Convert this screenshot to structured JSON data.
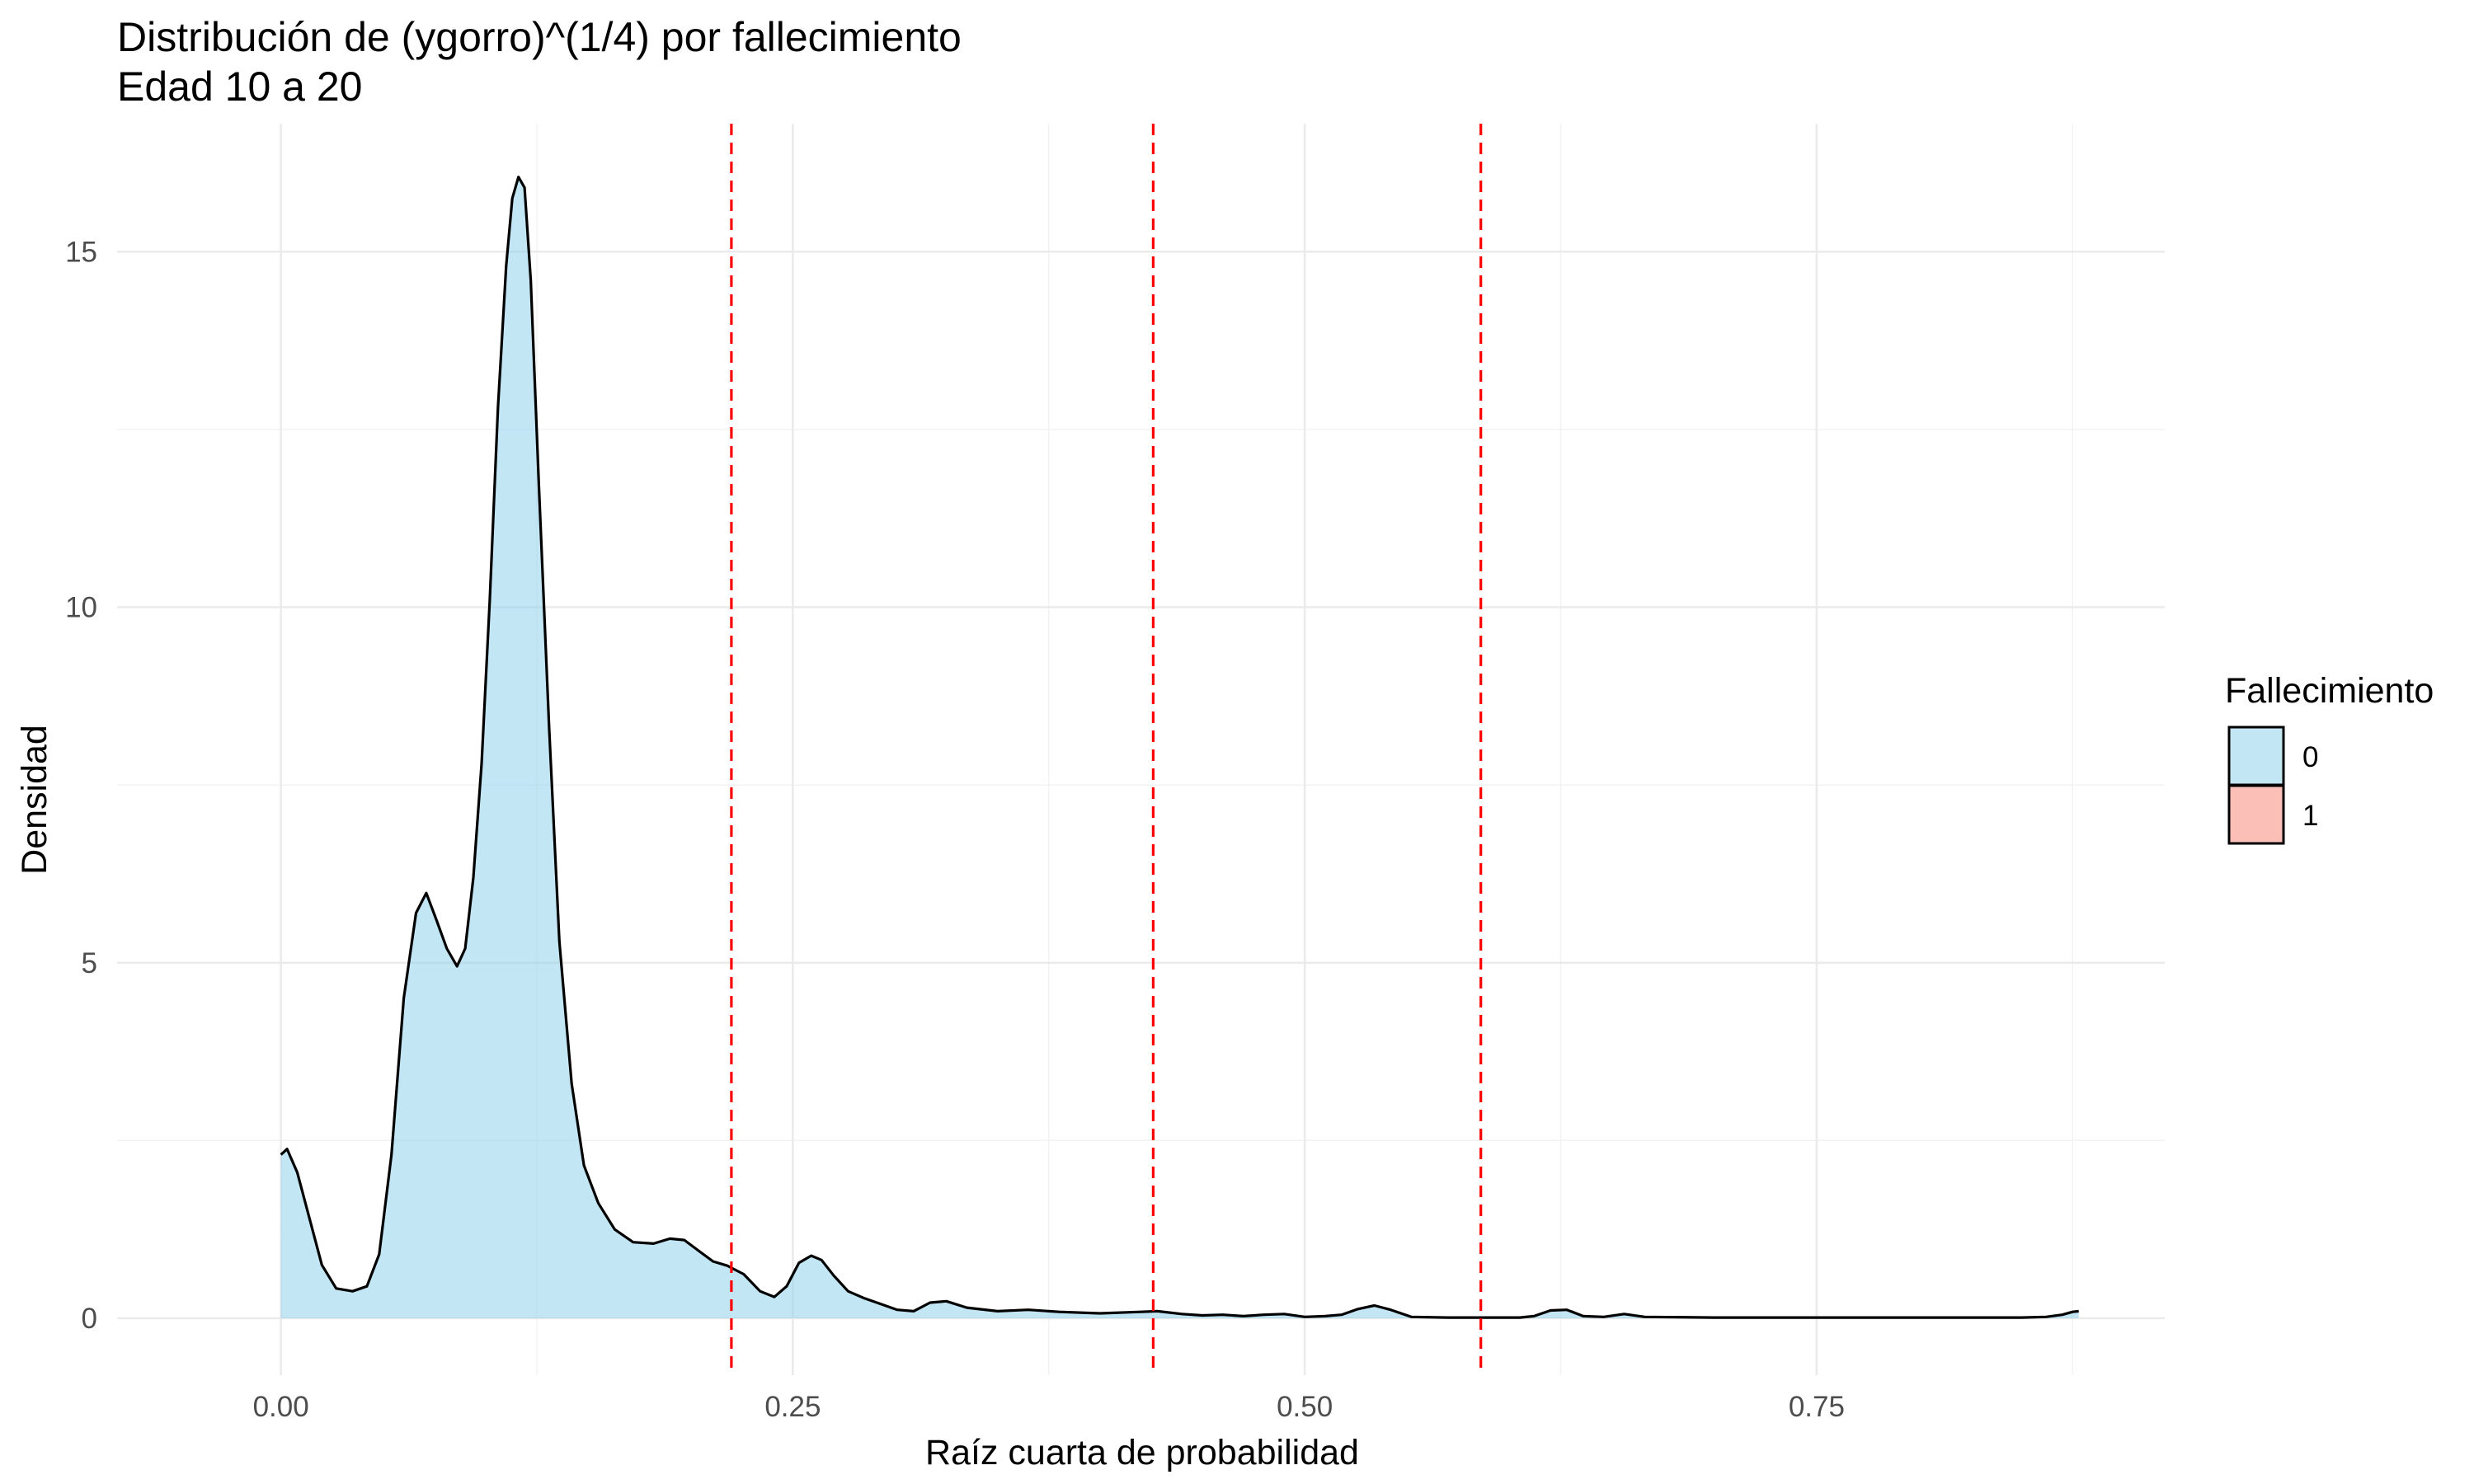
{
  "chart_data": {
    "type": "area",
    "title": "Distribución de (ygorro)^(1/4) por fallecimiento",
    "subtitle": "Edad 10 a 20",
    "xlabel": "Raíz cuarta de probabilidad",
    "ylabel": "Densidad",
    "xlim": [
      -0.08,
      0.92
    ],
    "ylim": [
      -0.8,
      16.8
    ],
    "x_ticks": [
      0,
      0.25,
      0.5,
      0.75
    ],
    "x_tick_labels": [
      "0.00",
      "0.25",
      "0.50",
      "0.75"
    ],
    "y_ticks": [
      0,
      5,
      10,
      15
    ],
    "y_tick_labels": [
      "0",
      "5",
      "10",
      "15"
    ],
    "grid": true,
    "legend": {
      "title": "Fallecimiento",
      "position": "right",
      "entries": [
        {
          "label": "0",
          "color": "#87ceeb"
        },
        {
          "label": "1",
          "color": "#fa8072"
        }
      ]
    },
    "series": [
      {
        "name": "0",
        "fill": "#87ceeb",
        "x": [
          0.0,
          0.003,
          0.008,
          0.014,
          0.02,
          0.027,
          0.035,
          0.042,
          0.048,
          0.054,
          0.06,
          0.066,
          0.071,
          0.076,
          0.081,
          0.086,
          0.09,
          0.094,
          0.098,
          0.102,
          0.106,
          0.11,
          0.113,
          0.116,
          0.119,
          0.122,
          0.126,
          0.131,
          0.136,
          0.142,
          0.148,
          0.155,
          0.163,
          0.172,
          0.182,
          0.19,
          0.197,
          0.204,
          0.211,
          0.218,
          0.226,
          0.234,
          0.241,
          0.247,
          0.253,
          0.259,
          0.264,
          0.27,
          0.277,
          0.285,
          0.293,
          0.301,
          0.309,
          0.317,
          0.325,
          0.335,
          0.35,
          0.365,
          0.38,
          0.4,
          0.42,
          0.428,
          0.44,
          0.45,
          0.46,
          0.47,
          0.48,
          0.49,
          0.5,
          0.51,
          0.518,
          0.526,
          0.534,
          0.542,
          0.552,
          0.57,
          0.59,
          0.605,
          0.612,
          0.62,
          0.628,
          0.636,
          0.646,
          0.656,
          0.666,
          0.7,
          0.75,
          0.8,
          0.85,
          0.862,
          0.87,
          0.875,
          0.878
        ],
        "y": [
          2.3,
          2.38,
          2.05,
          1.4,
          0.75,
          0.42,
          0.38,
          0.45,
          0.9,
          2.3,
          4.5,
          5.7,
          5.98,
          5.6,
          5.2,
          4.95,
          5.2,
          6.2,
          7.8,
          10.1,
          12.8,
          14.8,
          15.75,
          16.05,
          15.9,
          14.6,
          11.7,
          8.3,
          5.3,
          3.3,
          2.15,
          1.62,
          1.25,
          1.07,
          1.05,
          1.12,
          1.1,
          0.95,
          0.8,
          0.74,
          0.62,
          0.38,
          0.3,
          0.45,
          0.78,
          0.88,
          0.82,
          0.6,
          0.38,
          0.28,
          0.2,
          0.12,
          0.1,
          0.22,
          0.24,
          0.15,
          0.1,
          0.12,
          0.09,
          0.07,
          0.09,
          0.1,
          0.06,
          0.04,
          0.05,
          0.03,
          0.05,
          0.06,
          0.02,
          0.03,
          0.05,
          0.13,
          0.18,
          0.12,
          0.02,
          0.01,
          0.01,
          0.01,
          0.03,
          0.11,
          0.12,
          0.03,
          0.02,
          0.06,
          0.02,
          0.01,
          0.01,
          0.01,
          0.01,
          0.02,
          0.05,
          0.09,
          0.1
        ]
      }
    ],
    "vlines": {
      "color": "#ff0000",
      "style": "dashed",
      "x": [
        0.22,
        0.426,
        0.586
      ]
    }
  }
}
